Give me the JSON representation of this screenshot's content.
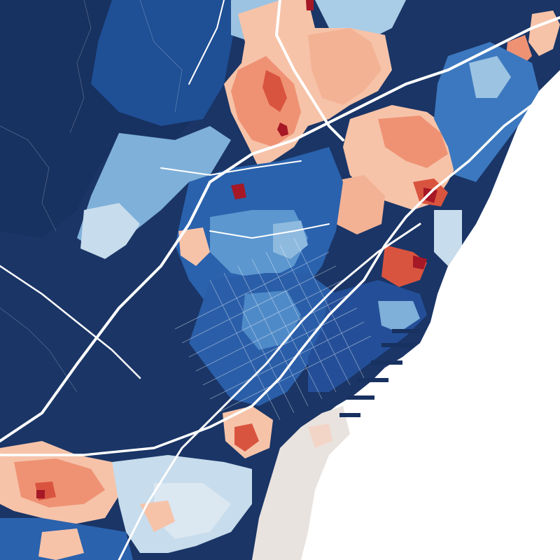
{
  "map": {
    "description_visible_text": "",
    "sea_color": "#ffffff",
    "palette": {
      "very_low": "#1a3566",
      "low": "#1f4f95",
      "mid_low": "#3c78bf",
      "mid": "#7fb0d9",
      "light": "#c7dcec",
      "neutral": "#e9e3df",
      "mid_high": "#f6c3a9",
      "high": "#ef9274",
      "very_high": "#d9543f",
      "extreme": "#a61826"
    },
    "road_color": "#ffffff"
  }
}
